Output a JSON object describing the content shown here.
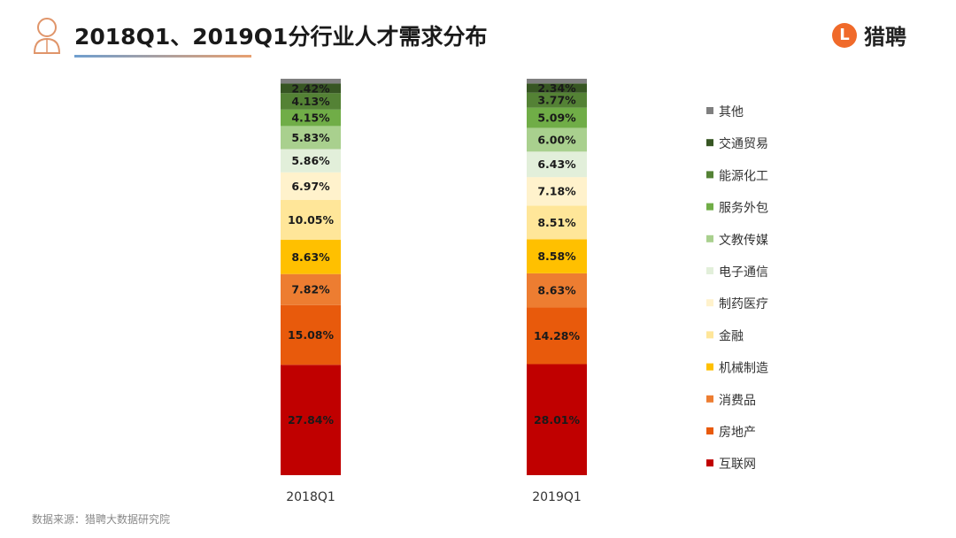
{
  "header": {
    "title": "2018Q1、2019Q1分行业人才需求分布",
    "logo_mark": "L",
    "logo_text": "猎聘"
  },
  "source": "数据来源：猎聘大数据研究院",
  "chart_data": {
    "type": "bar",
    "stacked": true,
    "title": "2018Q1、2019Q1分行业人才需求分布",
    "categories": [
      "2018Q1",
      "2019Q1"
    ],
    "ylim": [
      0,
      100
    ],
    "legend_position": "right",
    "series": [
      {
        "name": "互联网",
        "color": "#c00000",
        "values": [
          27.84,
          28.01
        ],
        "labels": [
          "27.84%",
          "28.01%"
        ]
      },
      {
        "name": "房地产",
        "color": "#e85a0c",
        "values": [
          15.08,
          14.28
        ],
        "labels": [
          "15.08%",
          "14.28%"
        ]
      },
      {
        "name": "消费品",
        "color": "#ed7d31",
        "values": [
          7.82,
          8.63
        ],
        "labels": [
          "7.82%",
          "8.63%"
        ]
      },
      {
        "name": "机械制造",
        "color": "#ffc000",
        "values": [
          8.63,
          8.58
        ],
        "labels": [
          "8.63%",
          "8.58%"
        ]
      },
      {
        "name": "金融",
        "color": "#ffe699",
        "values": [
          10.05,
          8.51
        ],
        "labels": [
          "10.05%",
          "8.51%"
        ]
      },
      {
        "name": "制药医疗",
        "color": "#fff2cc",
        "values": [
          6.97,
          7.18
        ],
        "labels": [
          "6.97%",
          "7.18%"
        ]
      },
      {
        "name": "电子通信",
        "color": "#e2efda",
        "values": [
          5.86,
          6.43
        ],
        "labels": [
          "5.86%",
          "6.43%"
        ]
      },
      {
        "name": "文教传媒",
        "color": "#a9d08e",
        "values": [
          5.83,
          6.0
        ],
        "labels": [
          "5.83%",
          "6.00%"
        ]
      },
      {
        "name": "服务外包",
        "color": "#70ad47",
        "values": [
          4.15,
          5.09
        ],
        "labels": [
          "4.15%",
          "5.09%"
        ]
      },
      {
        "name": "能源化工",
        "color": "#548235",
        "values": [
          4.13,
          3.77
        ],
        "labels": [
          "4.13%",
          "3.77%"
        ]
      },
      {
        "name": "交通贸易",
        "color": "#375623",
        "values": [
          2.42,
          2.34
        ],
        "labels": [
          "2.42%",
          "2.34%"
        ]
      },
      {
        "name": "其他",
        "color": "#7f7f7f",
        "values": [
          1.22,
          1.18
        ],
        "labels": [
          null,
          null
        ]
      }
    ]
  }
}
